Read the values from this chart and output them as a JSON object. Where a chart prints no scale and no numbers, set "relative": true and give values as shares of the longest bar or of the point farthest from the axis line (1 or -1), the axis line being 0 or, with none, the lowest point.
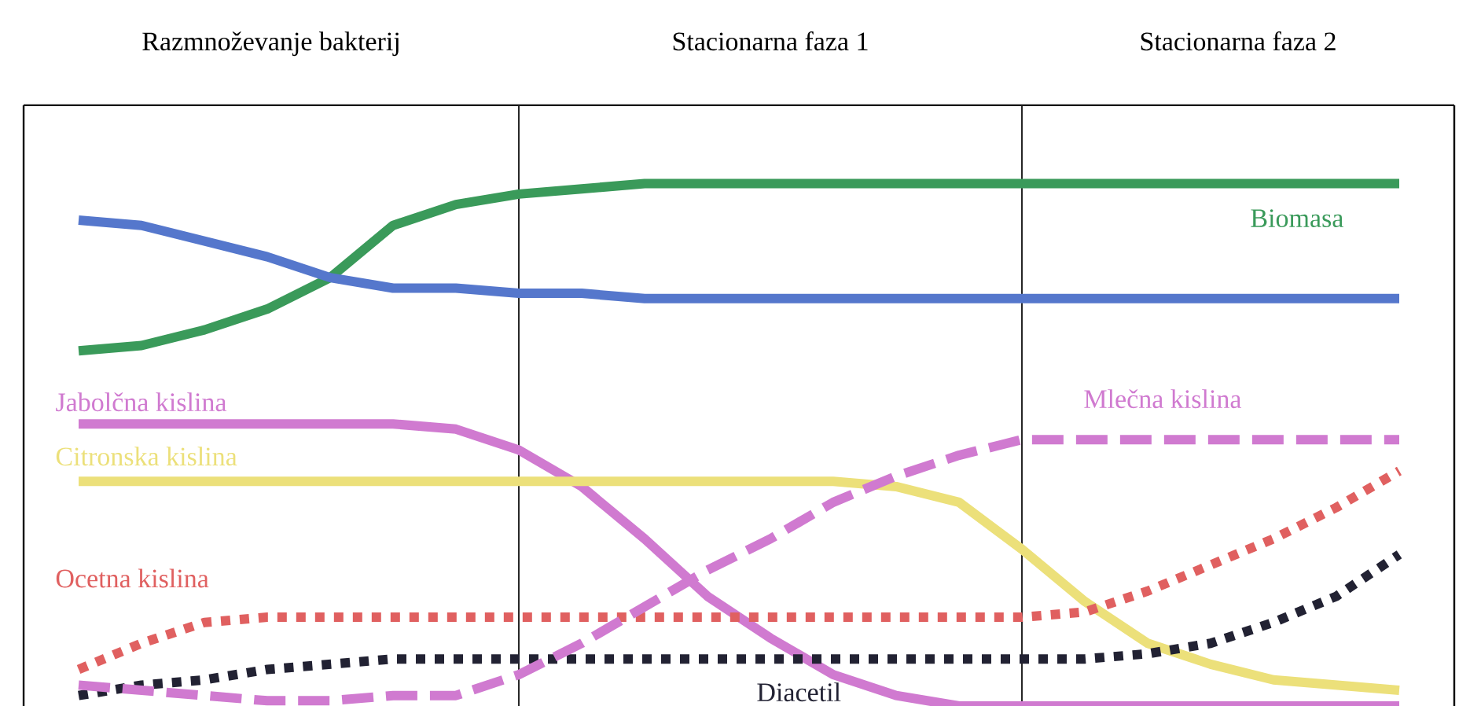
{
  "chart_data": {
    "type": "line",
    "relative": true,
    "categories": [
      null,
      null,
      null,
      null,
      null,
      null,
      null,
      null,
      null,
      null,
      null,
      null,
      null,
      null,
      null,
      null,
      null,
      null,
      null,
      null,
      null,
      null,
      null,
      null
    ],
    "series": [
      {
        "name": "Biomasa",
        "color": "#3a9a5a",
        "line_style": "solid",
        "values": [
          null,
          0.68,
          0.69,
          0.72,
          0.76,
          0.82,
          0.92,
          0.96,
          0.98,
          0.99,
          1,
          1,
          1,
          1,
          1,
          1,
          1,
          1,
          1,
          1,
          1,
          1,
          1,
          null
        ]
      },
      {
        "color": "#5577cc",
        "line_style": "solid",
        "values": [
          null,
          0.93,
          0.92,
          0.89,
          0.86,
          0.82,
          0.8,
          0.8,
          0.79,
          0.79,
          0.78,
          0.78,
          0.78,
          0.78,
          0.78,
          0.78,
          0.78,
          0.78,
          0.78,
          0.78,
          0.78,
          0.78,
          0.78,
          null
        ]
      },
      {
        "name": "Jabolčna kislina",
        "color": "#d07ad0",
        "line_style": "solid",
        "values": [
          null,
          0.54,
          0.54,
          0.54,
          0.54,
          0.54,
          0.54,
          0.53,
          0.49,
          0.42,
          0.32,
          0.21,
          0.13,
          0.06,
          0.02,
          0,
          0,
          0,
          0,
          0,
          0,
          0,
          0,
          null
        ]
      },
      {
        "name": "Citronska kislina",
        "color": "#ece07a",
        "line_style": "solid",
        "values": [
          null,
          0.43,
          0.43,
          0.43,
          0.43,
          0.43,
          0.43,
          0.43,
          0.43,
          0.43,
          0.43,
          0.43,
          0.43,
          0.43,
          0.42,
          0.39,
          0.3,
          0.2,
          0.12,
          0.08,
          0.05,
          0.04,
          0.03,
          null
        ]
      },
      {
        "name": "Ocetna kislina",
        "color": "#e06060",
        "line_style": "dotted",
        "values": [
          null,
          0.07,
          0.12,
          0.16,
          0.17,
          0.17,
          0.17,
          0.17,
          0.17,
          0.17,
          0.17,
          0.17,
          0.17,
          0.17,
          0.17,
          0.17,
          0.17,
          0.18,
          0.22,
          0.27,
          0.32,
          0.38,
          0.45,
          null
        ]
      },
      {
        "name": "Diacetil",
        "color": "#222233",
        "line_style": "dotted",
        "values": [
          null,
          0.02,
          0.04,
          0.05,
          0.07,
          0.08,
          0.09,
          0.09,
          0.09,
          0.09,
          0.09,
          0.09,
          0.09,
          0.09,
          0.09,
          0.09,
          0.09,
          0.09,
          0.1,
          0.12,
          0.16,
          0.21,
          0.29,
          null
        ]
      },
      {
        "name": "Mlečna kislina",
        "color": "#d07ad0",
        "line_style": "dashed",
        "values": [
          null,
          0.04,
          0.03,
          0.02,
          0.01,
          0.01,
          0.02,
          0.02,
          0.06,
          0.12,
          0.19,
          0.26,
          0.32,
          0.39,
          0.44,
          0.48,
          0.51,
          0.51,
          0.51,
          0.51,
          0.51,
          0.51,
          0.51,
          null
        ]
      }
    ],
    "annotations": [
      "Razmnoževanje bakterij",
      "Stacionarna faza 1",
      "Stacionarna faza 2"
    ]
  }
}
